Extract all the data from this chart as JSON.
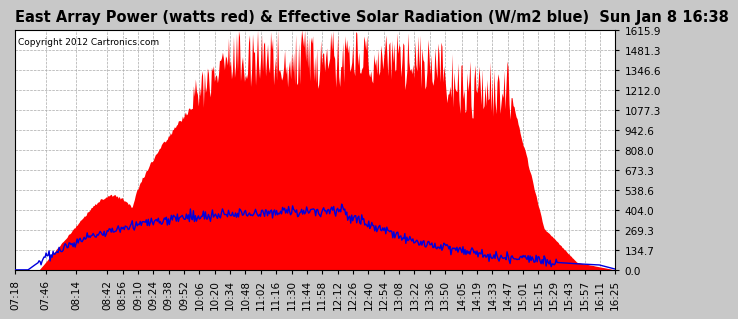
{
  "title": "East Array Power (watts red) & Effective Solar Radiation (W/m2 blue)  Sun Jan 8 16:38",
  "copyright": "Copyright 2012 Cartronics.com",
  "ymax": 1615.9,
  "ymin": 0.0,
  "yticks": [
    0.0,
    134.7,
    269.3,
    404.0,
    538.6,
    673.3,
    808.0,
    942.6,
    1077.3,
    1212.0,
    1346.6,
    1481.3,
    1615.9
  ],
  "bg_color": "#c8c8c8",
  "plot_bg_color": "#ffffff",
  "grid_color": "#aaaaaa",
  "red_color": "#ff0000",
  "blue_color": "#0000dd",
  "title_fontsize": 10.5,
  "copyright_fontsize": 6.5,
  "tick_fontsize": 7.5,
  "xtick_labels": [
    "07:18",
    "07:46",
    "08:14",
    "08:42",
    "08:56",
    "09:10",
    "09:24",
    "09:38",
    "09:52",
    "10:06",
    "10:20",
    "10:34",
    "10:48",
    "11:02",
    "11:16",
    "11:30",
    "11:44",
    "11:58",
    "12:12",
    "12:26",
    "12:40",
    "12:54",
    "13:08",
    "13:22",
    "13:36",
    "13:50",
    "14:05",
    "14:19",
    "14:33",
    "14:47",
    "15:01",
    "15:15",
    "15:29",
    "15:43",
    "15:57",
    "16:11",
    "16:25"
  ]
}
